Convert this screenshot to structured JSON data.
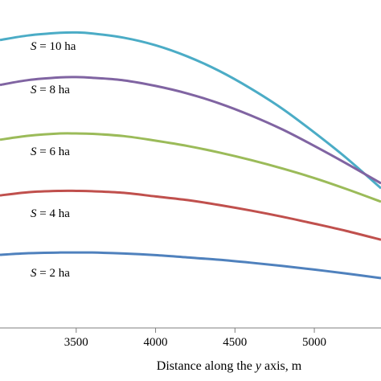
{
  "chart_data": {
    "type": "line",
    "title": "",
    "xlabel_parts": [
      "Distance along the ",
      "y",
      " axis, m"
    ],
    "ylabel": "",
    "xlim": [
      3020,
      5420
    ],
    "ylim": [
      0,
      100
    ],
    "x_ticks": [
      3500,
      4000,
      4500,
      5000
    ],
    "x_tick_labels": [
      "3500",
      "4000",
      "4500",
      "5000"
    ],
    "grid": false,
    "series": [
      {
        "name": "S = 10 ha",
        "label_var": "S",
        "label_rest": " = 10 ha",
        "color": "#4bacc6",
        "x": [
          3020,
          3200,
          3400,
          3500,
          3600,
          3800,
          4000,
          4200,
          4400,
          4600,
          4800,
          5000,
          5200,
          5420
        ],
        "y": [
          87.8,
          89.2,
          90.0,
          90.1,
          89.8,
          88.5,
          86.2,
          82.8,
          78.4,
          73.0,
          66.8,
          59.6,
          51.9,
          42.6
        ]
      },
      {
        "name": "S = 8 ha",
        "label_var": "S",
        "label_rest": " = 8 ha",
        "color": "#8064a2",
        "x": [
          3020,
          3200,
          3400,
          3500,
          3600,
          3800,
          4000,
          4200,
          4400,
          4600,
          4800,
          5000,
          5200,
          5420
        ],
        "y": [
          74.1,
          75.6,
          76.4,
          76.5,
          76.3,
          75.5,
          73.8,
          71.5,
          68.5,
          64.8,
          60.5,
          55.5,
          50.2,
          44.1
        ]
      },
      {
        "name": "S = 6 ha",
        "label_var": "S",
        "label_rest": " = 6 ha",
        "color": "#9bbb59",
        "x": [
          3020,
          3200,
          3400,
          3500,
          3600,
          3800,
          4000,
          4200,
          4400,
          4600,
          4800,
          5000,
          5200,
          5420
        ],
        "y": [
          57.4,
          58.6,
          59.3,
          59.3,
          59.2,
          58.5,
          57.1,
          55.5,
          53.5,
          51.2,
          48.6,
          45.7,
          42.4,
          38.5
        ]
      },
      {
        "name": "S = 4 ha",
        "label_var": "S",
        "label_rest": " = 4 ha",
        "color": "#c0504d",
        "x": [
          3020,
          3200,
          3400,
          3500,
          3600,
          3800,
          4000,
          4200,
          4400,
          4600,
          4800,
          5000,
          5200,
          5420
        ],
        "y": [
          40.4,
          41.4,
          41.8,
          41.8,
          41.7,
          41.2,
          40.1,
          39.0,
          37.5,
          35.8,
          33.9,
          31.8,
          29.6,
          26.9
        ]
      },
      {
        "name": "S = 2 ha",
        "label_var": "S",
        "label_rest": " = 2 ha",
        "color": "#4f81bd",
        "x": [
          3020,
          3200,
          3400,
          3500,
          3600,
          3800,
          4000,
          4200,
          4400,
          4600,
          4800,
          5000,
          5200,
          5420
        ],
        "y": [
          22.3,
          22.8,
          23.0,
          23.0,
          23.0,
          22.7,
          22.2,
          21.5,
          20.8,
          19.9,
          18.9,
          17.8,
          16.6,
          15.2
        ]
      }
    ]
  }
}
